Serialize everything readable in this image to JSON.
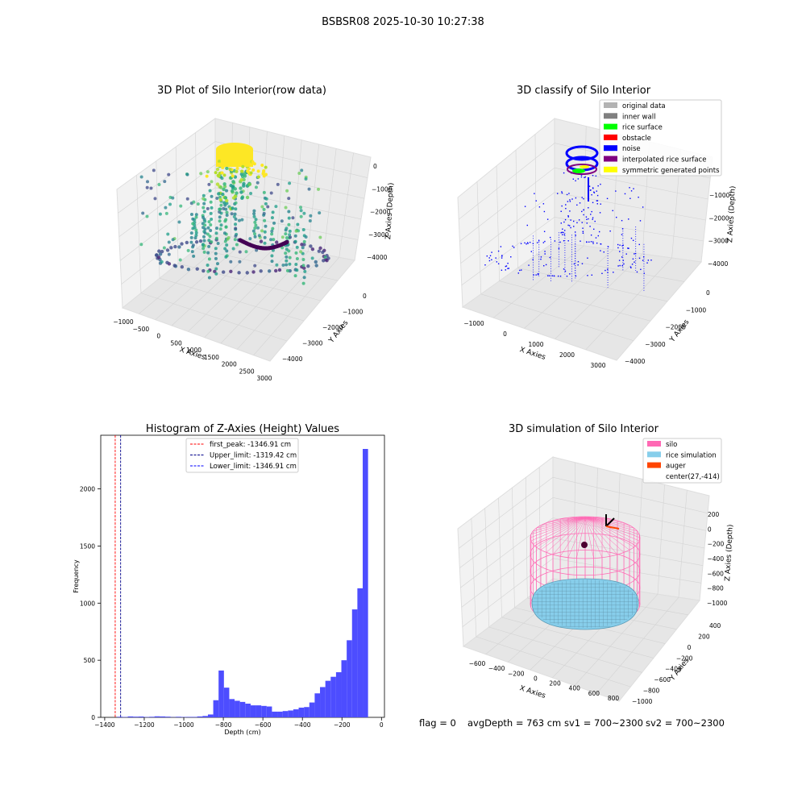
{
  "figure_title": "BSBSR08 2025-10-30 10:27:38",
  "footer": {
    "flag": "flag = 0",
    "avg": "avgDepth = 763 cm",
    "sv1": "sv1 = 700~2300",
    "sv2": "sv2 = 700~2300"
  },
  "chart_data": [
    {
      "type": "scatter",
      "title": "3D Plot of Silo Interior(row data)",
      "xlabel": "X Axies",
      "ylabel": "Y Axies",
      "zlabel": "Z Axies (Depth)",
      "x_ticks": [
        "−1000",
        "−500",
        "0",
        "500",
        "1000",
        "1500",
        "2000",
        "2500",
        "3000"
      ],
      "y_ticks": [
        "0",
        "−1000",
        "−2000",
        "−3000",
        "−4000"
      ],
      "z_ticks": [
        "0",
        "−1000",
        "−2000",
        "−3000",
        "−4000"
      ],
      "colormap": "viridis (by depth)"
    },
    {
      "type": "scatter",
      "title": "3D classify of Silo Interior",
      "xlabel": "X Axies",
      "ylabel": "Y Axies",
      "zlabel": "Z Axies (Depth)",
      "x_ticks": [
        "−1000",
        "0",
        "1000",
        "2000",
        "3000"
      ],
      "y_ticks": [
        "0",
        "−1000",
        "−2000",
        "−3000",
        "−4000"
      ],
      "z_ticks": [
        "−1000",
        "−2000",
        "−3000",
        "−4000"
      ],
      "legend_position": "top-right",
      "legend": [
        {
          "label": "original data",
          "color": "#b3b3b3"
        },
        {
          "label": "inner wall",
          "color": "#808080"
        },
        {
          "label": "rice surface",
          "color": "#00ff00"
        },
        {
          "label": "obstacle",
          "color": "#ff0000"
        },
        {
          "label": "noise",
          "color": "#0000ff"
        },
        {
          "label": "interpolated rice surface",
          "color": "#800080"
        },
        {
          "label": "symmetric generated points",
          "color": "#ffff00"
        }
      ]
    },
    {
      "type": "bar",
      "title": "Histogram of Z-Axies (Height) Values",
      "xlabel": "Depth (cm)",
      "ylabel": "Frequency",
      "xlim": [
        -1420,
        15
      ],
      "ylim": [
        0,
        2470
      ],
      "x_ticks": [
        -1400,
        -1200,
        -1000,
        -800,
        -600,
        -400,
        -200,
        0
      ],
      "x_tick_labels": [
        "−1400",
        "−1200",
        "−1000",
        "−800",
        "−600",
        "−400",
        "−200",
        "0"
      ],
      "y_ticks": [
        0,
        500,
        1000,
        1500,
        2000
      ],
      "bar_color": "#4d4dff",
      "bin_width": 27,
      "bins": [
        {
          "x": -1337,
          "v": 5
        },
        {
          "x": -1310,
          "v": 3
        },
        {
          "x": -1283,
          "v": 8
        },
        {
          "x": -1256,
          "v": 6
        },
        {
          "x": -1229,
          "v": 7
        },
        {
          "x": -1202,
          "v": 3
        },
        {
          "x": -1175,
          "v": 5
        },
        {
          "x": -1148,
          "v": 9
        },
        {
          "x": -1121,
          "v": 8
        },
        {
          "x": -1094,
          "v": 6
        },
        {
          "x": -1067,
          "v": 2
        },
        {
          "x": -1040,
          "v": 5
        },
        {
          "x": -1013,
          "v": 3
        },
        {
          "x": -986,
          "v": 4
        },
        {
          "x": -959,
          "v": 4
        },
        {
          "x": -932,
          "v": 8
        },
        {
          "x": -905,
          "v": 12
        },
        {
          "x": -878,
          "v": 25
        },
        {
          "x": -851,
          "v": 150
        },
        {
          "x": -824,
          "v": 410
        },
        {
          "x": -797,
          "v": 260
        },
        {
          "x": -770,
          "v": 160
        },
        {
          "x": -743,
          "v": 145
        },
        {
          "x": -716,
          "v": 135
        },
        {
          "x": -689,
          "v": 120
        },
        {
          "x": -662,
          "v": 105
        },
        {
          "x": -635,
          "v": 105
        },
        {
          "x": -608,
          "v": 100
        },
        {
          "x": -581,
          "v": 95
        },
        {
          "x": -554,
          "v": 50
        },
        {
          "x": -527,
          "v": 50
        },
        {
          "x": -500,
          "v": 55
        },
        {
          "x": -473,
          "v": 60
        },
        {
          "x": -446,
          "v": 70
        },
        {
          "x": -419,
          "v": 85
        },
        {
          "x": -392,
          "v": 90
        },
        {
          "x": -365,
          "v": 130
        },
        {
          "x": -338,
          "v": 210
        },
        {
          "x": -311,
          "v": 265
        },
        {
          "x": -284,
          "v": 320
        },
        {
          "x": -257,
          "v": 355
        },
        {
          "x": -230,
          "v": 395
        },
        {
          "x": -203,
          "v": 500
        },
        {
          "x": -176,
          "v": 675
        },
        {
          "x": -149,
          "v": 945
        },
        {
          "x": -122,
          "v": 1130
        },
        {
          "x": -95,
          "v": 2350
        }
      ],
      "lines": [
        {
          "label": "first_peak: -1346.91 cm",
          "x": -1346.91,
          "color": "#ff0000"
        },
        {
          "label": "Upper_limit: -1319.42 cm",
          "x": -1319.42,
          "color": "#00008b"
        },
        {
          "label": "Lower_limit: -1346.91 cm",
          "x": -1346.91,
          "color": "#0000ff"
        }
      ]
    },
    {
      "type": "surface",
      "title": "3D simulation of Silo Interior",
      "xlabel": "X Axies",
      "ylabel": "Y Axies",
      "zlabel": "Z Axies (Depth)",
      "x_ticks": [
        "−600",
        "−400",
        "−200",
        "0",
        "200",
        "400",
        "600",
        "800"
      ],
      "y_ticks": [
        "400",
        "200",
        "0",
        "−200",
        "−400",
        "−600",
        "−800",
        "−1000"
      ],
      "z_ticks": [
        "200",
        "0",
        "−200",
        "−400",
        "−600",
        "−800",
        "−1000"
      ],
      "legend_position": "top-right",
      "legend": [
        {
          "label": "silo",
          "color": "#ff69b4"
        },
        {
          "label": "rice simulation",
          "color": "#87ceeb"
        },
        {
          "label": "auger",
          "color": "#ff4500"
        },
        {
          "label": "center(27,-414)",
          "color": ""
        }
      ]
    }
  ]
}
